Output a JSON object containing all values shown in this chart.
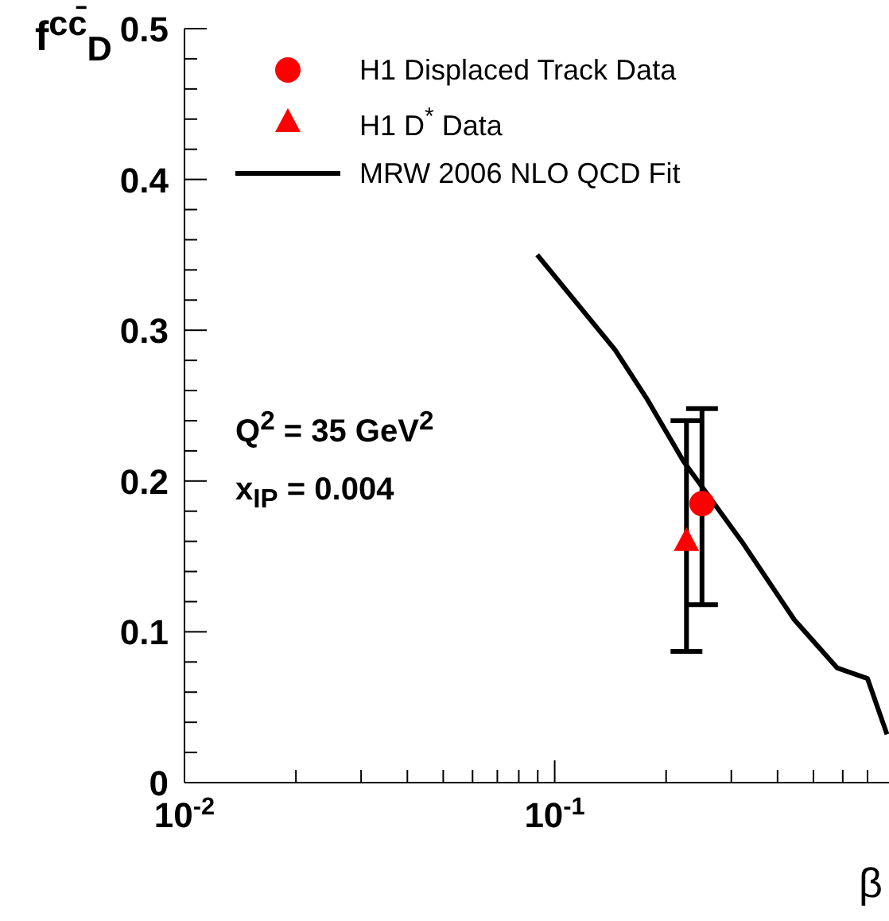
{
  "chart_data": {
    "type": "scatter",
    "xlabel": "β",
    "ylabel": "f$^{cc̄}$$_{D}$",
    "xlim": [
      0.01,
      0.8
    ],
    "ylim": [
      0,
      0.5
    ],
    "log": "x",
    "legend": "top left",
    "xticks": [
      {
        "value": 0.01,
        "label": "10$^{-2}$"
      },
      {
        "value": 0.02,
        "label": null
      },
      {
        "value": 0.03,
        "label": null
      },
      {
        "value": 0.04,
        "label": null
      },
      {
        "value": 0.05,
        "label": null
      },
      {
        "value": 0.06,
        "label": null
      },
      {
        "value": 0.07,
        "label": null
      },
      {
        "value": 0.08,
        "label": null
      },
      {
        "value": 0.09,
        "label": null
      },
      {
        "value": 0.1,
        "label": "10$^{-1}$"
      },
      {
        "value": 0.2,
        "label": null
      },
      {
        "value": 0.3,
        "label": null
      },
      {
        "value": 0.4,
        "label": null
      },
      {
        "value": 0.5,
        "label": null
      },
      {
        "value": 0.6,
        "label": null
      },
      {
        "value": 0.7,
        "label": null
      }
    ],
    "yticks": [
      0,
      {
        "value": 0.02,
        "label": null
      },
      {
        "value": 0.04,
        "label": null
      },
      {
        "value": 0.06,
        "label": null
      },
      {
        "value": 0.08,
        "label": null
      },
      0.1,
      {
        "value": 0.12,
        "label": null
      },
      {
        "value": 0.14,
        "label": null
      },
      {
        "value": 0.16,
        "label": null
      },
      {
        "value": 0.18,
        "label": null
      },
      0.2,
      {
        "value": 0.22,
        "label": null
      },
      {
        "value": 0.24,
        "label": null
      },
      {
        "value": 0.26,
        "label": null
      },
      {
        "value": 0.28,
        "label": null
      },
      0.3,
      {
        "value": 0.32,
        "label": null
      },
      {
        "value": 0.34,
        "label": null
      },
      {
        "value": 0.36,
        "label": null
      },
      {
        "value": 0.38,
        "label": null
      },
      0.4,
      {
        "value": 0.42,
        "label": null
      },
      {
        "value": 0.44,
        "label": null
      },
      {
        "value": 0.46,
        "label": null
      },
      {
        "value": 0.48,
        "label": null
      },
      0.5
    ],
    "series": [
      {
        "name": "H1 Displaced Track Data",
        "marker": "circle",
        "color": "#ff0000",
        "x": [
          0.25
        ],
        "values": [
          0.185
        ],
        "errors": [
          [
            0.118,
            0.248
          ]
        ]
      },
      {
        "name": "H1 D$^{*}$ Data",
        "marker": "triangle",
        "color": "#ff0000",
        "x": [
          0.227
        ],
        "values": [
          0.16
        ],
        "errors": [
          [
            0.087,
            0.24
          ]
        ]
      },
      {
        "name": "MRW 2006 NLO QCD Fit",
        "type": "line",
        "marker": "none",
        "line_style": "solid",
        "color": "#000000",
        "x": [
          0.0897,
          0.1456,
          0.177,
          0.223,
          0.32,
          0.444,
          0.58,
          0.7,
          0.79
        ],
        "values": [
          0.35,
          0.287,
          0.255,
          0.213,
          0.16,
          0.108,
          0.076,
          0.069,
          0.032
        ]
      }
    ],
    "annotations": [
      "Q$^{2}$ = 35 GeV$^{2}$",
      "x$_{IP}$ = 0.004"
    ]
  }
}
